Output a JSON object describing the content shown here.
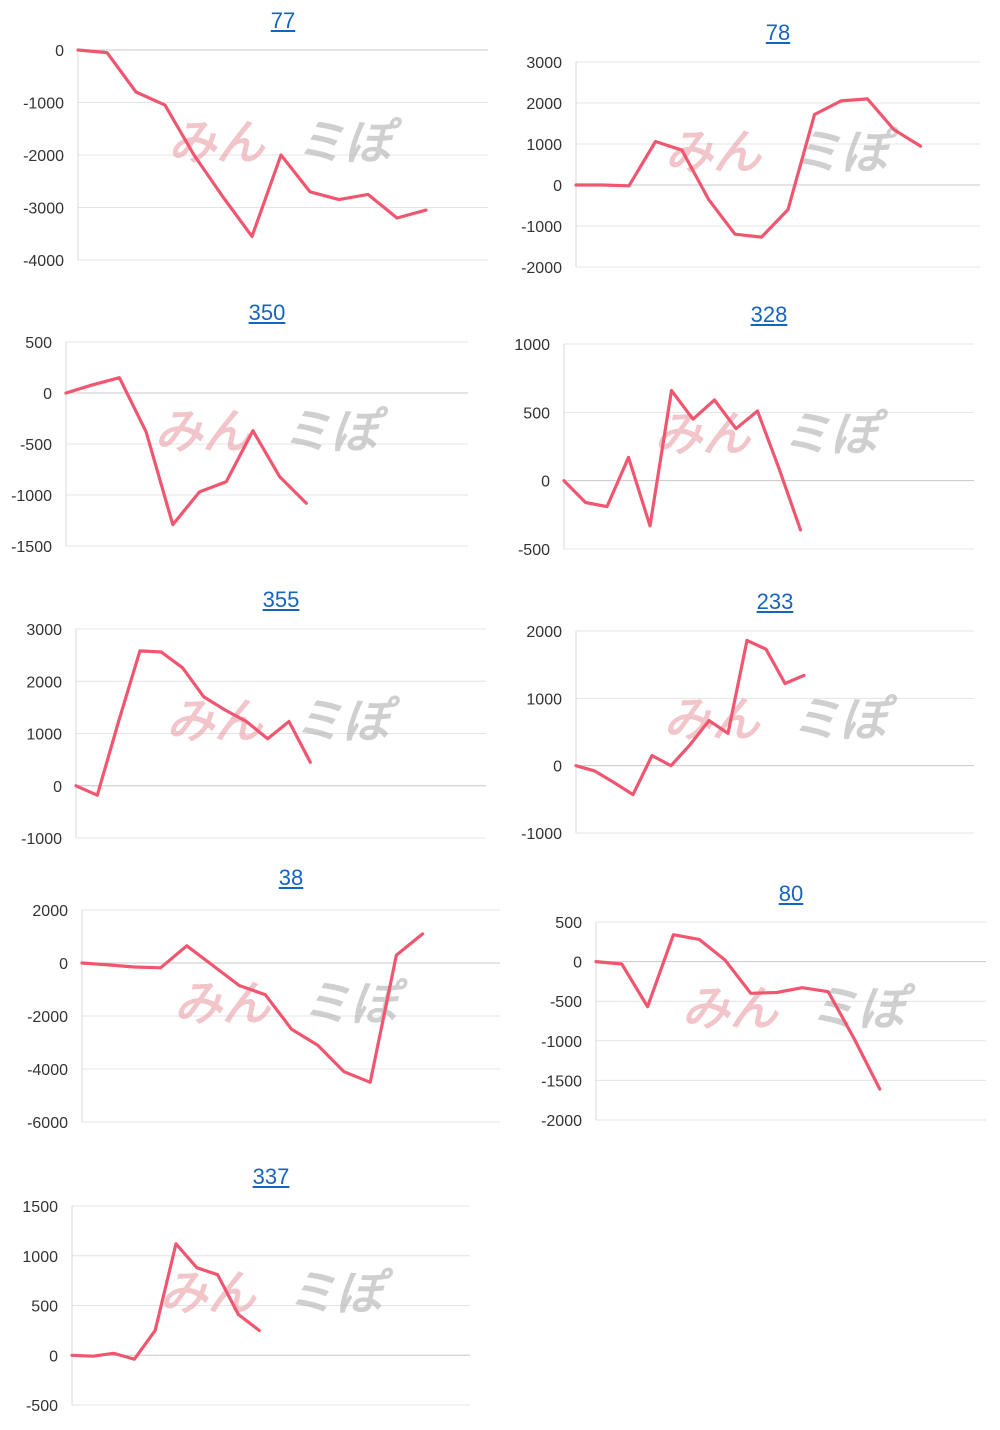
{
  "chart_data": [
    {
      "type": "line",
      "title": "77",
      "ylim": [
        -4000,
        0
      ],
      "yticks": [
        0,
        -1000,
        -2000,
        -3000,
        -4000
      ],
      "grid": true,
      "series": [
        {
          "values": [
            0,
            -50,
            -800,
            -1050,
            -2000,
            -2800,
            -3550,
            -2000,
            -2700,
            -2850,
            -2750,
            -3200,
            -3050
          ]
        }
      ],
      "watermark": [
        "みん",
        "ミぽ"
      ],
      "colors": {
        "line": "#f0566f",
        "title": "#1565c0"
      }
    },
    {
      "type": "line",
      "title": "78",
      "ylim": [
        -2000,
        3000
      ],
      "yticks": [
        3000,
        2000,
        1000,
        0,
        -1000,
        -2000
      ],
      "grid": true,
      "series": [
        {
          "values": [
            0,
            0,
            -20,
            1060,
            850,
            -350,
            -1200,
            -1270,
            -600,
            1720,
            2050,
            2100,
            1350,
            950
          ]
        }
      ],
      "watermark": [
        "みん",
        "ミぽ"
      ],
      "colors": {
        "line": "#f0566f",
        "title": "#1565c0"
      }
    },
    {
      "type": "line",
      "title": "350",
      "ylim": [
        -1500,
        500
      ],
      "yticks": [
        500,
        0,
        -500,
        -1000,
        -1500
      ],
      "grid": true,
      "series": [
        {
          "values": [
            0,
            80,
            150,
            -380,
            -1290,
            -970,
            -870,
            -370,
            -820,
            -1080
          ]
        }
      ],
      "watermark": [
        "みん",
        "ミぽ"
      ],
      "colors": {
        "line": "#f0566f",
        "title": "#1565c0"
      }
    },
    {
      "type": "line",
      "title": "328",
      "ylim": [
        -500,
        1000
      ],
      "yticks": [
        1000,
        500,
        0,
        -500
      ],
      "grid": true,
      "series": [
        {
          "values": [
            0,
            -160,
            -190,
            170,
            -330,
            660,
            450,
            590,
            380,
            510,
            90,
            -360
          ]
        }
      ],
      "watermark": [
        "みん",
        "ミぽ"
      ],
      "colors": {
        "line": "#f0566f",
        "title": "#1565c0"
      }
    },
    {
      "type": "line",
      "title": "355",
      "ylim": [
        -1000,
        3000
      ],
      "yticks": [
        3000,
        2000,
        1000,
        0,
        -1000
      ],
      "grid": true,
      "series": [
        {
          "values": [
            0,
            -180,
            1230,
            2580,
            2560,
            2260,
            1700,
            1450,
            1230,
            900,
            1230,
            450
          ]
        }
      ],
      "watermark": [
        "みん",
        "ミぽ"
      ],
      "colors": {
        "line": "#f0566f",
        "title": "#1565c0"
      }
    },
    {
      "type": "line",
      "title": "233",
      "ylim": [
        -1000,
        2000
      ],
      "yticks": [
        2000,
        1000,
        0,
        -1000
      ],
      "grid": true,
      "series": [
        {
          "values": [
            0,
            -80,
            -250,
            -430,
            150,
            0,
            310,
            670,
            480,
            1860,
            1730,
            1220,
            1340
          ]
        }
      ],
      "watermark": [
        "みん",
        "ミぽ"
      ],
      "colors": {
        "line": "#f0566f",
        "title": "#1565c0"
      }
    },
    {
      "type": "line",
      "title": "38",
      "ylim": [
        -6000,
        2000
      ],
      "yticks": [
        2000,
        0,
        -2000,
        -4000,
        -6000
      ],
      "grid": true,
      "series": [
        {
          "values": [
            0,
            -70,
            -150,
            -180,
            650,
            -100,
            -850,
            -1200,
            -2500,
            -3100,
            -4100,
            -4500,
            300,
            1100
          ]
        }
      ],
      "watermark": [
        "みん",
        "ミぽ"
      ],
      "colors": {
        "line": "#f0566f",
        "title": "#1565c0"
      }
    },
    {
      "type": "line",
      "title": "80",
      "ylim": [
        -2000,
        500
      ],
      "yticks": [
        500,
        0,
        -500,
        -1000,
        -1500,
        -2000
      ],
      "grid": true,
      "series": [
        {
          "values": [
            0,
            -30,
            -570,
            340,
            280,
            20,
            -400,
            -390,
            -330,
            -380,
            -970,
            -1610
          ]
        }
      ],
      "watermark": [
        "みん",
        "ミぽ"
      ],
      "colors": {
        "line": "#f0566f",
        "title": "#1565c0"
      }
    },
    {
      "type": "line",
      "title": "337",
      "ylim": [
        -500,
        1500
      ],
      "yticks": [
        1500,
        1000,
        500,
        0,
        -500
      ],
      "grid": true,
      "series": [
        {
          "values": [
            0,
            -10,
            20,
            -40,
            250,
            1120,
            880,
            810,
            410,
            250
          ]
        }
      ],
      "watermark": [
        "みん",
        "ミぽ"
      ],
      "colors": {
        "line": "#f0566f",
        "title": "#1565c0"
      }
    }
  ]
}
